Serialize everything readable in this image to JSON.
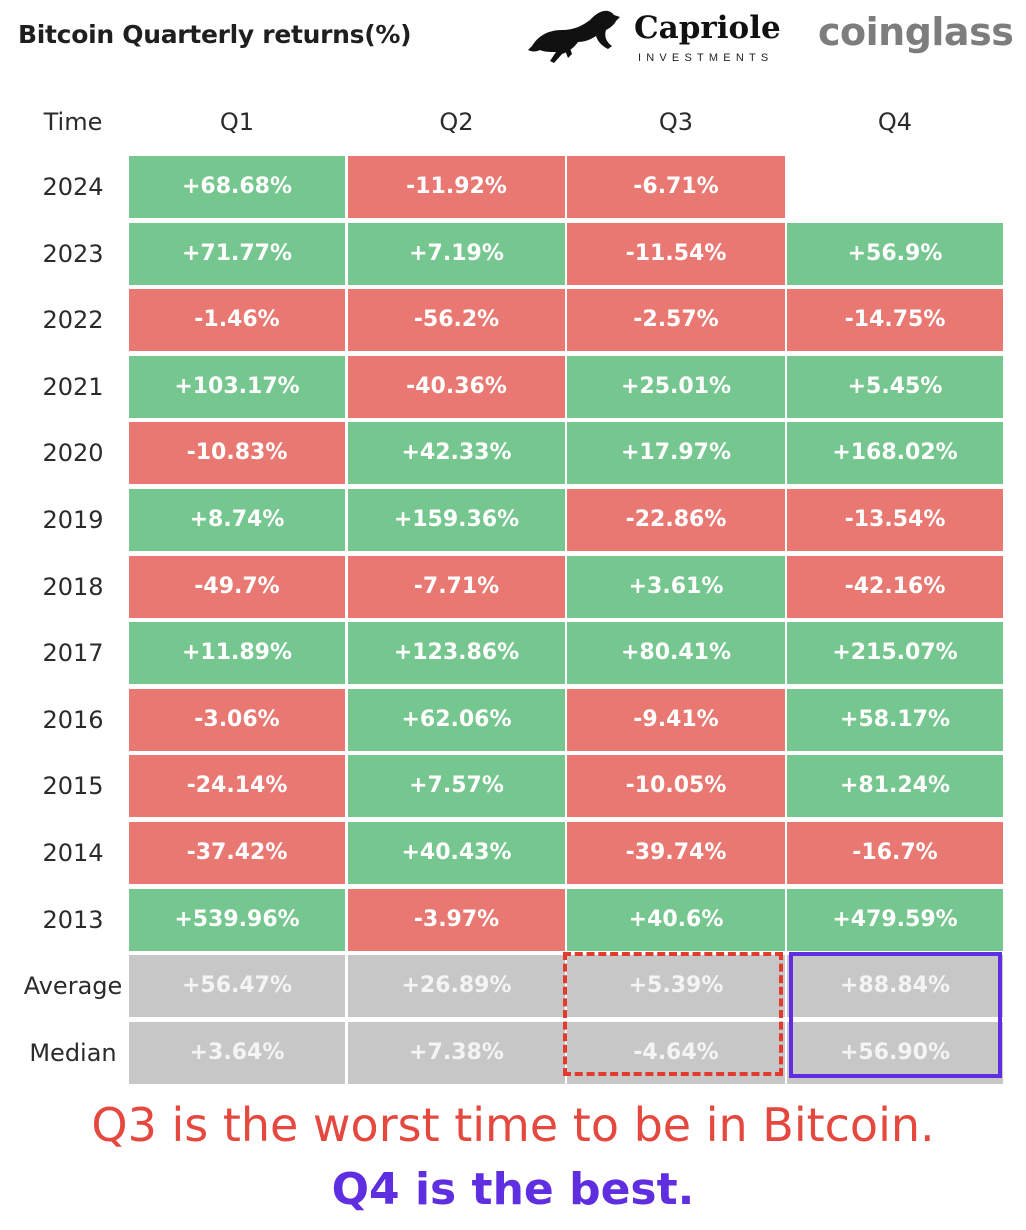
{
  "header": {
    "title": "Bitcoin Quarterly returns(%)",
    "brand_capriole": "Capriole",
    "brand_capriole_sub": "INVESTMENTS",
    "brand_coinglass": "coinglass"
  },
  "chart_data": {
    "type": "table",
    "title": "Bitcoin Quarterly returns(%)",
    "row_header": "Time",
    "columns": [
      "Q1",
      "Q2",
      "Q3",
      "Q4"
    ],
    "rows": [
      {
        "label": "2024",
        "values": [
          "+68.68%",
          "-11.92%",
          "-6.71%",
          null
        ]
      },
      {
        "label": "2023",
        "values": [
          "+71.77%",
          "+7.19%",
          "-11.54%",
          "+56.9%"
        ]
      },
      {
        "label": "2022",
        "values": [
          "-1.46%",
          "-56.2%",
          "-2.57%",
          "-14.75%"
        ]
      },
      {
        "label": "2021",
        "values": [
          "+103.17%",
          "-40.36%",
          "+25.01%",
          "+5.45%"
        ]
      },
      {
        "label": "2020",
        "values": [
          "-10.83%",
          "+42.33%",
          "+17.97%",
          "+168.02%"
        ]
      },
      {
        "label": "2019",
        "values": [
          "+8.74%",
          "+159.36%",
          "-22.86%",
          "-13.54%"
        ]
      },
      {
        "label": "2018",
        "values": [
          "-49.7%",
          "-7.71%",
          "+3.61%",
          "-42.16%"
        ]
      },
      {
        "label": "2017",
        "values": [
          "+11.89%",
          "+123.86%",
          "+80.41%",
          "+215.07%"
        ]
      },
      {
        "label": "2016",
        "values": [
          "-3.06%",
          "+62.06%",
          "-9.41%",
          "+58.17%"
        ]
      },
      {
        "label": "2015",
        "values": [
          "-24.14%",
          "+7.57%",
          "-10.05%",
          "+81.24%"
        ]
      },
      {
        "label": "2014",
        "values": [
          "-37.42%",
          "+40.43%",
          "-39.74%",
          "-16.7%"
        ]
      },
      {
        "label": "2013",
        "values": [
          "+539.96%",
          "-3.97%",
          "+40.6%",
          "+479.59%"
        ]
      }
    ],
    "summary_rows": [
      {
        "label": "Average",
        "values": [
          "+56.47%",
          "+26.89%",
          "+5.39%",
          "+88.84%"
        ]
      },
      {
        "label": "Median",
        "values": [
          "+3.64%",
          "+7.38%",
          "-4.64%",
          "+56.90%"
        ]
      }
    ],
    "colors": {
      "positive": "#76c68f",
      "negative": "#e97872",
      "summary": "#c7c7c7",
      "q3_highlight": "#e23b2e",
      "q4_highlight": "#5e2ee0"
    }
  },
  "captions": {
    "line1": "Q3 is the worst time to be in Bitcoin.",
    "line2": "Q4 is the best."
  }
}
